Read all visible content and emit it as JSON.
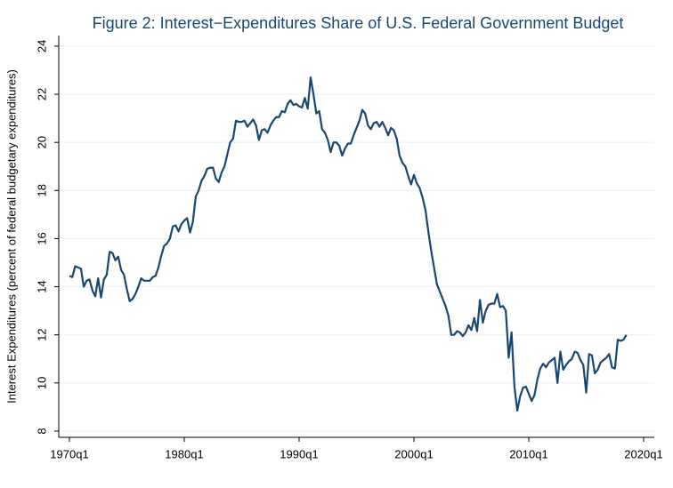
{
  "chart_data": {
    "type": "line",
    "title": "Figure 2: Interest−Expenditures Share of U.S. Federal Government Budget",
    "y_label": "Interest Expenditures (percent of federal budgetary expenditures)",
    "color": "#1a476f",
    "grid": true,
    "xlim": [
      1969.07,
      2020.93
    ],
    "ylim": [
      7.74,
      24.44
    ],
    "xticks": [
      {
        "value": 1970,
        "label": "1970q1"
      },
      {
        "value": 1980,
        "label": "1980q1"
      },
      {
        "value": 1990,
        "label": "1990q1"
      },
      {
        "value": 2000,
        "label": "2000q1"
      },
      {
        "value": 2010,
        "label": "2010q1"
      },
      {
        "value": 2020,
        "label": "2020q1"
      }
    ],
    "yticks": [
      8,
      10,
      12,
      14,
      16,
      18,
      20,
      22,
      24
    ],
    "x": [
      1970,
      1970.25,
      1970.5,
      1970.75,
      1971,
      1971.25,
      1971.5,
      1971.75,
      1972,
      1972.25,
      1972.5,
      1972.75,
      1973,
      1973.25,
      1973.5,
      1973.75,
      1974,
      1974.25,
      1974.5,
      1974.75,
      1975,
      1975.25,
      1975.5,
      1975.75,
      1976,
      1976.25,
      1976.5,
      1976.75,
      1977,
      1977.25,
      1977.5,
      1977.75,
      1978,
      1978.25,
      1978.5,
      1978.75,
      1979,
      1979.25,
      1979.5,
      1979.75,
      1980,
      1980.25,
      1980.5,
      1980.75,
      1981,
      1981.25,
      1981.5,
      1981.75,
      1982,
      1982.25,
      1982.5,
      1982.75,
      1983,
      1983.25,
      1983.5,
      1983.75,
      1984,
      1984.25,
      1984.5,
      1984.75,
      1985,
      1985.25,
      1985.5,
      1985.75,
      1986,
      1986.25,
      1986.5,
      1986.75,
      1987,
      1987.25,
      1987.5,
      1987.75,
      1988,
      1988.25,
      1988.5,
      1988.75,
      1989,
      1989.25,
      1989.5,
      1989.75,
      1990,
      1990.25,
      1990.5,
      1990.75,
      1991,
      1991.25,
      1991.5,
      1991.75,
      1992,
      1992.25,
      1992.5,
      1992.75,
      1993,
      1993.25,
      1993.5,
      1993.75,
      1994,
      1994.25,
      1994.5,
      1994.75,
      1995,
      1995.25,
      1995.5,
      1995.75,
      1996,
      1996.25,
      1996.5,
      1996.75,
      1997,
      1997.25,
      1997.5,
      1997.75,
      1998,
      1998.25,
      1998.5,
      1998.75,
      1999,
      1999.25,
      1999.5,
      1999.75,
      2000,
      2000.25,
      2000.5,
      2000.75,
      2001,
      2001.25,
      2001.5,
      2001.75,
      2002,
      2002.25,
      2002.5,
      2002.75,
      2003,
      2003.25,
      2003.5,
      2003.75,
      2004,
      2004.25,
      2004.5,
      2004.75,
      2005,
      2005.25,
      2005.5,
      2005.75,
      2006,
      2006.25,
      2006.5,
      2006.75,
      2007,
      2007.25,
      2007.5,
      2007.75,
      2008,
      2008.25,
      2008.5,
      2008.75,
      2009,
      2009.25,
      2009.5,
      2009.75,
      2010,
      2010.25,
      2010.5,
      2010.75,
      2011,
      2011.25,
      2011.5,
      2011.75,
      2012,
      2012.25,
      2012.5,
      2012.75,
      2013,
      2013.25,
      2013.5,
      2013.75,
      2014,
      2014.25,
      2014.5,
      2014.75,
      2015,
      2015.25,
      2015.5,
      2015.75,
      2016,
      2016.25,
      2016.5,
      2016.75,
      2017,
      2017.25,
      2017.5,
      2017.75,
      2018,
      2018.25,
      2018.5
    ],
    "values": [
      14.45,
      14.4,
      14.85,
      14.8,
      14.75,
      14.0,
      14.25,
      14.3,
      13.85,
      13.6,
      14.35,
      13.55,
      14.3,
      14.5,
      15.45,
      15.4,
      15.1,
      15.25,
      14.7,
      14.5,
      13.9,
      13.4,
      13.5,
      13.7,
      14.0,
      14.35,
      14.25,
      14.25,
      14.25,
      14.4,
      14.45,
      14.8,
      15.3,
      15.7,
      15.8,
      16.0,
      16.5,
      16.55,
      16.3,
      16.6,
      16.75,
      16.85,
      16.25,
      16.7,
      17.75,
      18.0,
      18.4,
      18.6,
      18.9,
      18.95,
      18.95,
      18.5,
      18.35,
      18.75,
      19.0,
      19.5,
      20.0,
      20.15,
      20.9,
      20.85,
      20.85,
      20.9,
      20.65,
      20.8,
      20.95,
      20.7,
      20.1,
      20.5,
      20.55,
      20.4,
      20.7,
      20.9,
      21.05,
      21.05,
      21.3,
      21.25,
      21.6,
      21.75,
      21.55,
      21.6,
      21.5,
      21.45,
      21.85,
      21.4,
      22.7,
      22.0,
      21.2,
      21.3,
      20.55,
      20.4,
      20.1,
      19.6,
      20.0,
      20.0,
      19.85,
      19.45,
      19.75,
      19.95,
      19.95,
      20.3,
      20.6,
      20.9,
      21.35,
      21.2,
      20.7,
      20.55,
      20.8,
      20.85,
      20.65,
      20.85,
      20.6,
      20.3,
      20.6,
      20.5,
      20.15,
      19.45,
      19.15,
      19.0,
      18.6,
      18.25,
      18.65,
      18.3,
      18.1,
      17.7,
      17.2,
      16.3,
      15.5,
      14.8,
      14.1,
      13.8,
      13.5,
      13.2,
      12.8,
      12.0,
      12.0,
      12.15,
      12.1,
      11.95,
      12.1,
      12.4,
      12.2,
      12.7,
      12.15,
      13.45,
      12.5,
      13.0,
      13.25,
      13.3,
      13.3,
      13.7,
      13.15,
      13.2,
      13.0,
      11.05,
      12.1,
      9.85,
      8.85,
      9.45,
      9.8,
      9.85,
      9.55,
      9.25,
      9.5,
      10.15,
      10.6,
      10.8,
      10.65,
      10.85,
      10.95,
      11.05,
      10.0,
      11.3,
      10.55,
      10.75,
      10.9,
      11.0,
      11.3,
      11.25,
      10.95,
      10.75,
      9.6,
      11.2,
      11.15,
      10.4,
      10.55,
      10.85,
      10.95,
      11.05,
      11.2,
      10.65,
      10.6,
      11.8,
      11.75,
      11.8,
      12.0
    ]
  }
}
